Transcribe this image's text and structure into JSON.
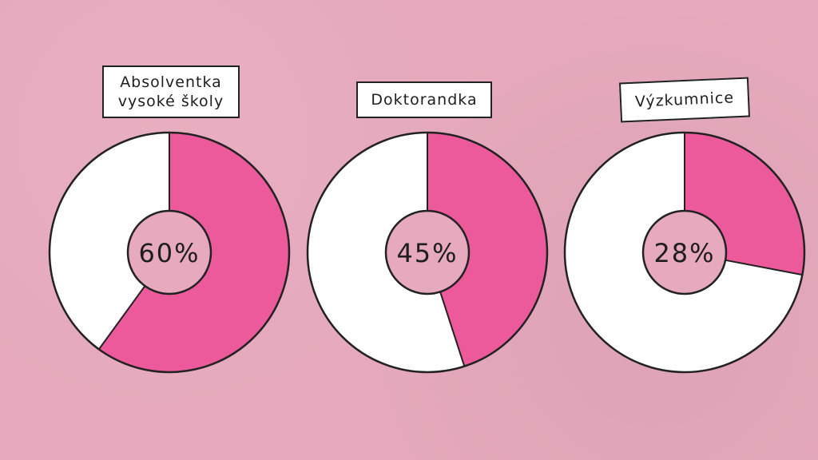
{
  "colors": {
    "background": "#e6a9bd",
    "accent": "#ec5a9c",
    "remainder": "#ffffff",
    "outline": "#222222"
  },
  "chart_data": [
    {
      "type": "pie",
      "category": [
        "Absolventka",
        "vysoké školy"
      ],
      "value_label": "60%",
      "values": [
        60,
        40
      ],
      "unit": "%"
    },
    {
      "type": "pie",
      "category": [
        "Doktorandka"
      ],
      "value_label": "45%",
      "values": [
        45,
        55
      ],
      "unit": "%"
    },
    {
      "type": "pie",
      "category": [
        "Výzkumnice"
      ],
      "value_label": "28%",
      "values": [
        28,
        72
      ],
      "unit": "%"
    }
  ]
}
